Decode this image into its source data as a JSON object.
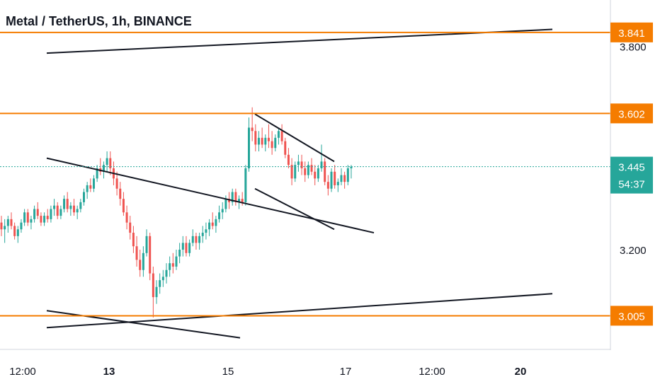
{
  "chart_data": {
    "type": "candlestick",
    "title": "Metal / TetherUS, 1h, BINANCE",
    "y_ticks": [
      "3.800",
      "3.200"
    ],
    "x_ticks": [
      "12:00",
      "13",
      "15",
      "17",
      "12:00",
      "20"
    ],
    "bold_x_ticks": [
      "13",
      "20"
    ],
    "horizontal_levels": [
      3.841,
      3.602,
      3.005
    ],
    "horizontal_level_labels": [
      "3.841",
      "3.602",
      "3.005"
    ],
    "last_price": 3.445,
    "last_price_label": "3.445",
    "countdown": "54:37",
    "colors": {
      "up": "#26a69a",
      "down": "#ef5350",
      "level": "#f57c00",
      "trendline": "#131722",
      "last": "#26a69a"
    },
    "trendlines": [
      {
        "from": [
          "day 12 00:00",
          3.78
        ],
        "to": [
          "day 20 12:00",
          3.85
        ]
      },
      {
        "from": [
          "day 12 00:00",
          3.47
        ],
        "to": [
          "day 17 12:00",
          3.25
        ]
      },
      {
        "from": [
          "day 15 12:00",
          3.6
        ],
        "to": [
          "day 16 20:00",
          3.46
        ]
      },
      {
        "from": [
          "day 15 12:00",
          3.38
        ],
        "to": [
          "day 16 20:00",
          3.26
        ]
      },
      {
        "from": [
          "day 12 00:00",
          2.97
        ],
        "to": [
          "day 20 12:00",
          3.07
        ]
      },
      {
        "from": [
          "day 12 00:00",
          3.02
        ],
        "to": [
          "day 15 06:00",
          2.94
        ]
      }
    ],
    "candles": [
      [
        3.28,
        3.3,
        3.24,
        3.26
      ],
      [
        3.26,
        3.29,
        3.22,
        3.27
      ],
      [
        3.27,
        3.3,
        3.25,
        3.29
      ],
      [
        3.29,
        3.31,
        3.26,
        3.27
      ],
      [
        3.27,
        3.28,
        3.23,
        3.24
      ],
      [
        3.24,
        3.27,
        3.22,
        3.26
      ],
      [
        3.26,
        3.29,
        3.25,
        3.28
      ],
      [
        3.28,
        3.32,
        3.27,
        3.31
      ],
      [
        3.31,
        3.32,
        3.27,
        3.28
      ],
      [
        3.28,
        3.3,
        3.26,
        3.29
      ],
      [
        3.29,
        3.33,
        3.28,
        3.32
      ],
      [
        3.32,
        3.34,
        3.29,
        3.3
      ],
      [
        3.3,
        3.31,
        3.27,
        3.28
      ],
      [
        3.28,
        3.31,
        3.27,
        3.3
      ],
      [
        3.3,
        3.32,
        3.28,
        3.29
      ],
      [
        3.29,
        3.33,
        3.28,
        3.32
      ],
      [
        3.32,
        3.35,
        3.3,
        3.33
      ],
      [
        3.33,
        3.34,
        3.29,
        3.3
      ],
      [
        3.3,
        3.33,
        3.29,
        3.32
      ],
      [
        3.32,
        3.36,
        3.31,
        3.35
      ],
      [
        3.35,
        3.37,
        3.31,
        3.32
      ],
      [
        3.32,
        3.34,
        3.3,
        3.33
      ],
      [
        3.33,
        3.35,
        3.3,
        3.31
      ],
      [
        3.31,
        3.33,
        3.29,
        3.32
      ],
      [
        3.32,
        3.35,
        3.31,
        3.34
      ],
      [
        3.34,
        3.38,
        3.33,
        3.37
      ],
      [
        3.37,
        3.4,
        3.35,
        3.39
      ],
      [
        3.39,
        3.41,
        3.37,
        3.38
      ],
      [
        3.38,
        3.42,
        3.37,
        3.41
      ],
      [
        3.41,
        3.45,
        3.4,
        3.44
      ],
      [
        3.44,
        3.47,
        3.42,
        3.43
      ],
      [
        3.43,
        3.46,
        3.41,
        3.45
      ],
      [
        3.45,
        3.49,
        3.43,
        3.47
      ],
      [
        3.47,
        3.49,
        3.42,
        3.44
      ],
      [
        3.44,
        3.46,
        3.39,
        3.41
      ],
      [
        3.41,
        3.43,
        3.36,
        3.38
      ],
      [
        3.38,
        3.4,
        3.33,
        3.35
      ],
      [
        3.35,
        3.37,
        3.3,
        3.31
      ],
      [
        3.31,
        3.33,
        3.26,
        3.28
      ],
      [
        3.28,
        3.3,
        3.23,
        3.25
      ],
      [
        3.25,
        3.27,
        3.19,
        3.21
      ],
      [
        3.21,
        3.24,
        3.15,
        3.17
      ],
      [
        3.17,
        3.2,
        3.12,
        3.14
      ],
      [
        3.14,
        3.21,
        3.12,
        3.19
      ],
      [
        3.19,
        3.26,
        3.18,
        3.24
      ],
      [
        3.24,
        3.25,
        3.11,
        3.13
      ],
      [
        3.13,
        3.15,
        3.0,
        3.06
      ],
      [
        3.06,
        3.11,
        3.04,
        3.09
      ],
      [
        3.09,
        3.13,
        3.07,
        3.11
      ],
      [
        3.11,
        3.14,
        3.09,
        3.12
      ],
      [
        3.12,
        3.16,
        3.1,
        3.14
      ],
      [
        3.14,
        3.18,
        3.12,
        3.16
      ],
      [
        3.16,
        3.19,
        3.13,
        3.15
      ],
      [
        3.15,
        3.2,
        3.14,
        3.18
      ],
      [
        3.18,
        3.22,
        3.16,
        3.2
      ],
      [
        3.2,
        3.24,
        3.18,
        3.22
      ],
      [
        3.22,
        3.24,
        3.18,
        3.19
      ],
      [
        3.19,
        3.23,
        3.18,
        3.22
      ],
      [
        3.22,
        3.26,
        3.21,
        3.24
      ],
      [
        3.24,
        3.25,
        3.2,
        3.22
      ],
      [
        3.22,
        3.25,
        3.2,
        3.24
      ],
      [
        3.24,
        3.27,
        3.22,
        3.25
      ],
      [
        3.25,
        3.28,
        3.23,
        3.26
      ],
      [
        3.26,
        3.29,
        3.24,
        3.28
      ],
      [
        3.28,
        3.31,
        3.26,
        3.27
      ],
      [
        3.27,
        3.3,
        3.25,
        3.29
      ],
      [
        3.29,
        3.33,
        3.28,
        3.31
      ],
      [
        3.31,
        3.34,
        3.29,
        3.32
      ],
      [
        3.32,
        3.36,
        3.31,
        3.35
      ],
      [
        3.35,
        3.37,
        3.32,
        3.34
      ],
      [
        3.34,
        3.38,
        3.33,
        3.37
      ],
      [
        3.37,
        3.38,
        3.33,
        3.34
      ],
      [
        3.34,
        3.36,
        3.32,
        3.35
      ],
      [
        3.35,
        3.37,
        3.33,
        3.34
      ],
      [
        3.34,
        3.45,
        3.33,
        3.44
      ],
      [
        3.44,
        3.59,
        3.43,
        3.56
      ],
      [
        3.56,
        3.62,
        3.52,
        3.55
      ],
      [
        3.55,
        3.57,
        3.49,
        3.51
      ],
      [
        3.51,
        3.55,
        3.49,
        3.53
      ],
      [
        3.53,
        3.56,
        3.5,
        3.51
      ],
      [
        3.51,
        3.54,
        3.49,
        3.53
      ],
      [
        3.53,
        3.57,
        3.5,
        3.52
      ],
      [
        3.52,
        3.55,
        3.48,
        3.5
      ],
      [
        3.5,
        3.54,
        3.49,
        3.53
      ],
      [
        3.53,
        3.56,
        3.51,
        3.55
      ],
      [
        3.55,
        3.57,
        3.51,
        3.52
      ],
      [
        3.52,
        3.53,
        3.47,
        3.48
      ],
      [
        3.48,
        3.5,
        3.44,
        3.45
      ],
      [
        3.45,
        3.47,
        3.39,
        3.41
      ],
      [
        3.41,
        3.46,
        3.4,
        3.45
      ],
      [
        3.45,
        3.48,
        3.43,
        3.46
      ],
      [
        3.46,
        3.48,
        3.42,
        3.44
      ],
      [
        3.44,
        3.46,
        3.4,
        3.42
      ],
      [
        3.42,
        3.46,
        3.41,
        3.45
      ],
      [
        3.45,
        3.47,
        3.42,
        3.43
      ],
      [
        3.43,
        3.45,
        3.39,
        3.41
      ],
      [
        3.41,
        3.45,
        3.4,
        3.44
      ],
      [
        3.44,
        3.51,
        3.43,
        3.46
      ],
      [
        3.46,
        3.47,
        3.39,
        3.4
      ],
      [
        3.4,
        3.42,
        3.36,
        3.38
      ],
      [
        3.38,
        3.44,
        3.37,
        3.43
      ],
      [
        3.43,
        3.45,
        3.38,
        3.39
      ],
      [
        3.39,
        3.41,
        3.37,
        3.4
      ],
      [
        3.4,
        3.44,
        3.39,
        3.42
      ],
      [
        3.42,
        3.43,
        3.38,
        3.4
      ],
      [
        3.4,
        3.45,
        3.39,
        3.44
      ],
      [
        3.44,
        3.45,
        3.41,
        3.445
      ]
    ]
  }
}
